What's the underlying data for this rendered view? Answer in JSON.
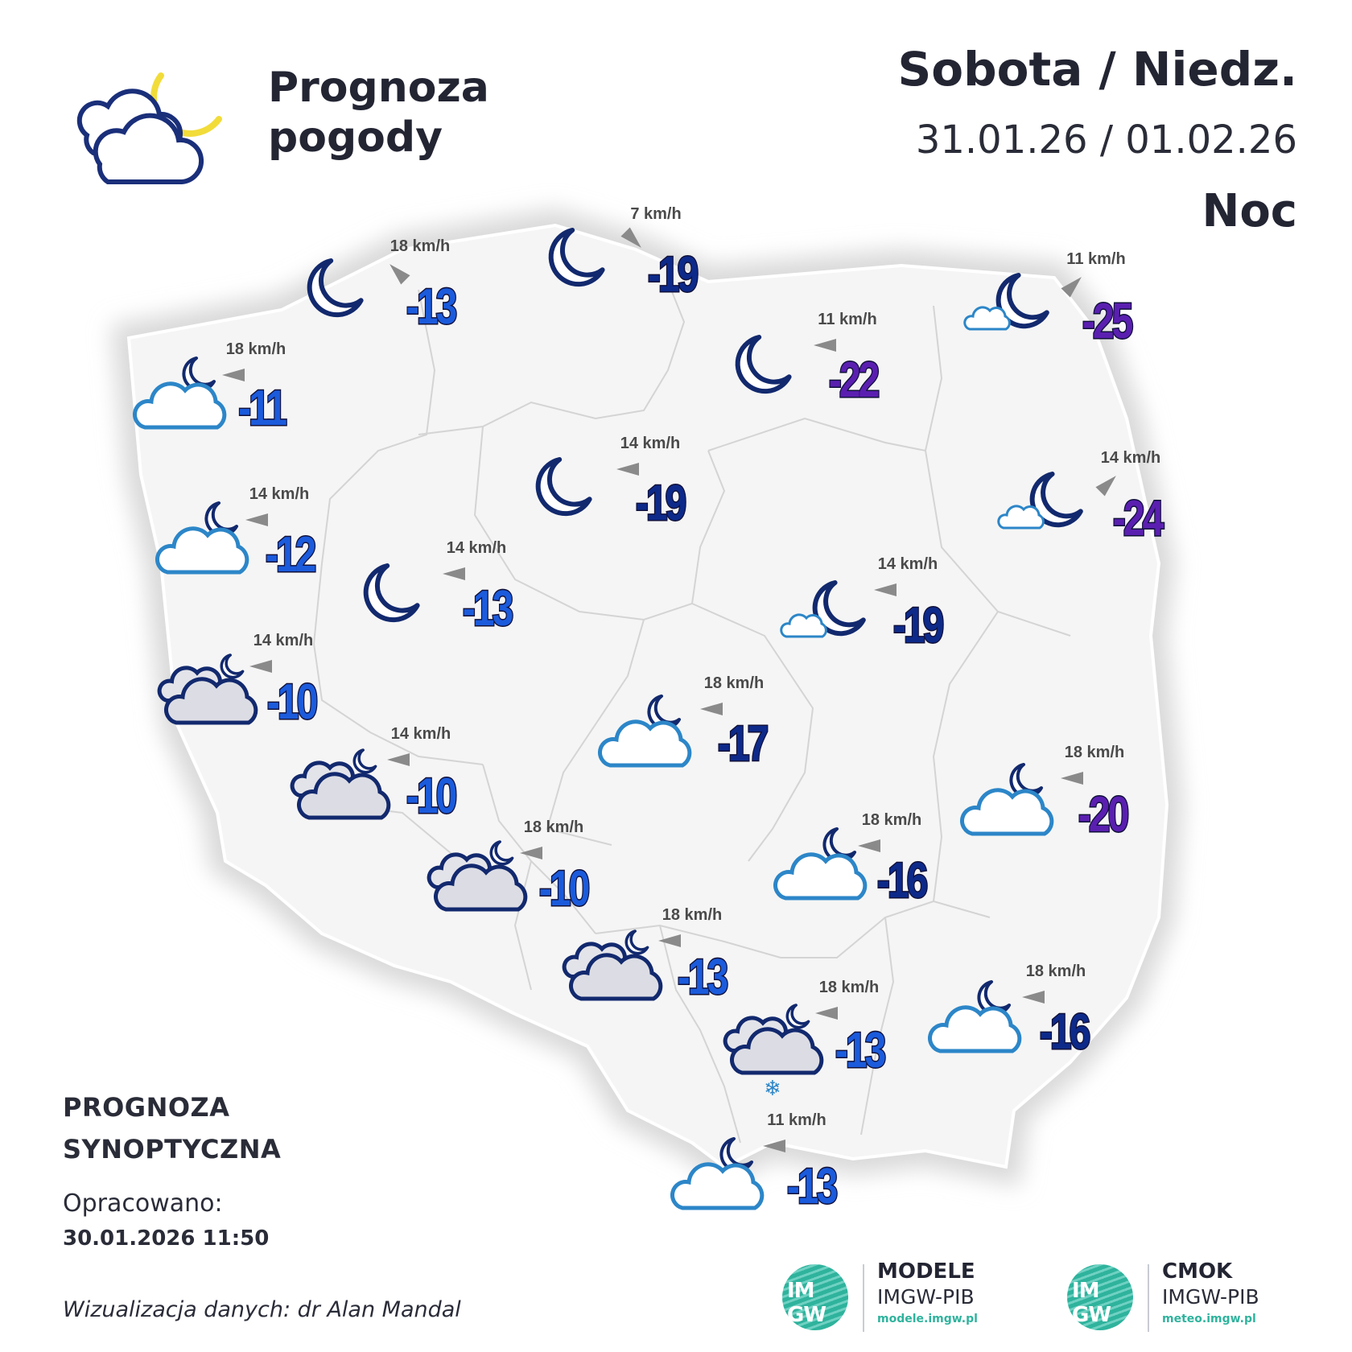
{
  "header": {
    "title_line1": "Prognoza",
    "title_line2": "pogody",
    "day": "Sobota / Niedz.",
    "dates": "31.01.26 / 01.02.26",
    "period": "Noc"
  },
  "footer": {
    "synop_line1": "PROGNOZA",
    "synop_line2": "SYNOPTYCZNA",
    "prepared_label": "Opracowano:",
    "prepared_date": "30.01.2026 11:50",
    "credit": "Wizualizacja danych: dr Alan Mandal"
  },
  "logos": [
    {
      "name": "MODELE",
      "sub": "IMGW-PIB",
      "url": "modele.imgw.pl",
      "mark": "IM GW"
    },
    {
      "name": "CMOK",
      "sub": "IMGW-PIB",
      "url": "meteo.imgw.pl",
      "mark": "IM GW"
    }
  ],
  "colors": {
    "temp_blue": "#1b5bdc",
    "temp_dark": "#0d2a8a",
    "temp_purple": "#5a1fb0",
    "map_fill": "#f5f5f5",
    "moon_yellow": "#f2dc3a",
    "icon_navy": "#12296e",
    "icon_blue": "#2c86c8"
  },
  "stations": [
    {
      "temp": "-13",
      "wind": "18 km/h",
      "wind_dir": "NW",
      "icon": "clear-night",
      "color": "blue"
    },
    {
      "temp": "-19",
      "wind": "7 km/h",
      "wind_dir": "SE",
      "icon": "clear-night",
      "color": "dark"
    },
    {
      "temp": "-25",
      "wind": "11 km/h",
      "wind_dir": "NE",
      "icon": "moon-small-cloud",
      "color": "purple"
    },
    {
      "temp": "-11",
      "wind": "18 km/h",
      "wind_dir": "W",
      "icon": "cloud-moon",
      "color": "blue"
    },
    {
      "temp": "-22",
      "wind": "11 km/h",
      "wind_dir": "W",
      "icon": "clear-night",
      "color": "purple"
    },
    {
      "temp": "-19",
      "wind": "14 km/h",
      "wind_dir": "W",
      "icon": "clear-night",
      "color": "dark"
    },
    {
      "temp": "-24",
      "wind": "14 km/h",
      "wind_dir": "NE",
      "icon": "moon-small-cloud",
      "color": "purple"
    },
    {
      "temp": "-12",
      "wind": "14 km/h",
      "wind_dir": "W",
      "icon": "cloud-moon",
      "color": "blue"
    },
    {
      "temp": "-13",
      "wind": "14 km/h",
      "wind_dir": "W",
      "icon": "clear-night",
      "color": "blue"
    },
    {
      "temp": "-19",
      "wind": "14 km/h",
      "wind_dir": "W",
      "icon": "moon-small-cloud",
      "color": "dark"
    },
    {
      "temp": "-10",
      "wind": "14 km/h",
      "wind_dir": "W",
      "icon": "overcast-moon",
      "color": "blue"
    },
    {
      "temp": "-17",
      "wind": "18 km/h",
      "wind_dir": "W",
      "icon": "cloud-moon",
      "color": "dark"
    },
    {
      "temp": "-10",
      "wind": "14 km/h",
      "wind_dir": "W",
      "icon": "overcast-moon",
      "color": "blue"
    },
    {
      "temp": "-20",
      "wind": "18 km/h",
      "wind_dir": "W",
      "icon": "cloud-moon",
      "color": "purple"
    },
    {
      "temp": "-10",
      "wind": "18 km/h",
      "wind_dir": "W",
      "icon": "overcast-moon",
      "color": "blue"
    },
    {
      "temp": "-16",
      "wind": "18 km/h",
      "wind_dir": "W",
      "icon": "cloud-moon",
      "color": "dark"
    },
    {
      "temp": "-13",
      "wind": "18 km/h",
      "wind_dir": "W",
      "icon": "overcast-moon",
      "color": "blue"
    },
    {
      "temp": "-13",
      "wind": "18 km/h",
      "wind_dir": "W",
      "icon": "overcast-snow",
      "color": "blue"
    },
    {
      "temp": "-16",
      "wind": "18 km/h",
      "wind_dir": "W",
      "icon": "cloud-moon",
      "color": "dark"
    },
    {
      "temp": "-13",
      "wind": "11 km/h",
      "wind_dir": "W",
      "icon": "cloud-moon",
      "color": "blue"
    }
  ]
}
